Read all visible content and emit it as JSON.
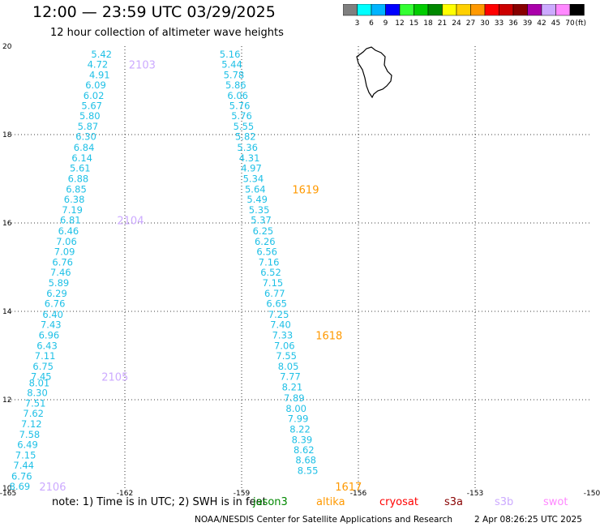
{
  "title": "12:00 — 23:59 UTC 03/29/2025",
  "subtitle": "12 hour collection of altimeter wave heights",
  "color_scale": {
    "labels": [
      "3",
      "6",
      "9",
      "12",
      "15",
      "18",
      "21",
      "24",
      "27",
      "30",
      "33",
      "36",
      "39",
      "42",
      "45",
      "70"
    ],
    "unit": "(ft)",
    "colors": [
      "#7f7f7f",
      "#00ffff",
      "#00b4ff",
      "#0000ff",
      "#33ff33",
      "#00cc00",
      "#008800",
      "#ffff00",
      "#ffd000",
      "#ff9900",
      "#ff0000",
      "#cc0000",
      "#880000",
      "#aa00aa",
      "#ccaaff",
      "#ff88ff",
      "#000000"
    ]
  },
  "note": "note:  1) Time is in UTC; 2) SWH is in feet",
  "satellites": [
    {
      "name": "jason3",
      "color": "#008800"
    },
    {
      "name": "altika",
      "color": "#ff9900"
    },
    {
      "name": "cryosat",
      "color": "#ff0000"
    },
    {
      "name": "s3a",
      "color": "#880000"
    },
    {
      "name": "s3b",
      "color": "#ccaaff"
    },
    {
      "name": "swot",
      "color": "#ff88ff"
    }
  ],
  "credit": "NOAA/NESDIS Center for Satellite Applications and Research",
  "timestamp": "2 Apr 08:26:25 UTC 2025",
  "chart_data": {
    "type": "scatter",
    "xlim": [
      -165,
      -150
    ],
    "ylim": [
      10,
      20
    ],
    "x_ticks": [
      "-165",
      "-162",
      "-159",
      "-156",
      "-153",
      "-150"
    ],
    "y_ticks": [
      "10",
      "12",
      "14",
      "16",
      "18",
      "20"
    ],
    "grid": true,
    "value_color": "#1fc0e6",
    "tracks": [
      {
        "points": [
          [
            -162.6,
            19.82,
            "5.42"
          ],
          [
            -162.7,
            19.59,
            "4.72"
          ],
          [
            -162.65,
            19.35,
            "4.91"
          ],
          [
            -162.75,
            19.12,
            "6.09"
          ],
          [
            -162.8,
            18.88,
            "6.02"
          ],
          [
            -162.85,
            18.65,
            "5.67"
          ],
          [
            -162.9,
            18.42,
            "5.80"
          ],
          [
            -162.95,
            18.18,
            "5.87"
          ],
          [
            -163.0,
            17.95,
            "6.30"
          ],
          [
            -163.05,
            17.71,
            "6.84"
          ],
          [
            -163.1,
            17.47,
            "6.14"
          ],
          [
            -163.15,
            17.24,
            "5.61"
          ],
          [
            -163.2,
            17.0,
            "6.88"
          ],
          [
            -163.25,
            16.76,
            "6.85"
          ],
          [
            -163.3,
            16.53,
            "6.38"
          ],
          [
            -163.35,
            16.29,
            "7.19"
          ],
          [
            -163.4,
            16.06,
            "6.81"
          ],
          [
            -163.45,
            15.82,
            "6.46"
          ],
          [
            -163.5,
            15.58,
            "7.06"
          ],
          [
            -163.55,
            15.35,
            "7.09"
          ],
          [
            -163.6,
            15.11,
            "6.76"
          ],
          [
            -163.65,
            14.88,
            "7.46"
          ],
          [
            -163.7,
            14.64,
            "5.89"
          ],
          [
            -163.75,
            14.4,
            "6.29"
          ],
          [
            -163.8,
            14.17,
            "6.76"
          ],
          [
            -163.85,
            13.93,
            "6.40"
          ],
          [
            -163.9,
            13.7,
            "7.43"
          ],
          [
            -163.95,
            13.46,
            "6.96"
          ],
          [
            -164.0,
            13.22,
            "6.43"
          ],
          [
            -164.05,
            12.99,
            "7.11"
          ],
          [
            -164.1,
            12.75,
            "6.75"
          ],
          [
            -164.15,
            12.52,
            "7.45"
          ],
          [
            -164.2,
            12.38,
            "8.01"
          ],
          [
            -164.25,
            12.16,
            "8.30"
          ],
          [
            -164.3,
            11.92,
            "7.51"
          ],
          [
            -164.35,
            11.69,
            "7.62"
          ],
          [
            -164.4,
            11.45,
            "7.12"
          ],
          [
            -164.45,
            11.21,
            "7.58"
          ],
          [
            -164.5,
            10.98,
            "6.49"
          ],
          [
            -164.55,
            10.74,
            "7.15"
          ],
          [
            -164.6,
            10.51,
            "7.44"
          ],
          [
            -164.65,
            10.27,
            "6.76"
          ],
          [
            -164.7,
            10.04,
            "8.69"
          ]
        ]
      },
      {
        "points": [
          [
            -159.3,
            19.82,
            "5.16"
          ],
          [
            -159.25,
            19.59,
            "5.44"
          ],
          [
            -159.2,
            19.35,
            "5.78"
          ],
          [
            -159.15,
            19.12,
            "5.86"
          ],
          [
            -159.1,
            18.88,
            "6.06"
          ],
          [
            -159.05,
            18.65,
            "5.76"
          ],
          [
            -159.0,
            18.42,
            "5.76"
          ],
          [
            -158.95,
            18.18,
            "5.55"
          ],
          [
            -158.9,
            17.95,
            "5.82"
          ],
          [
            -158.85,
            17.71,
            "5.36"
          ],
          [
            -158.8,
            17.47,
            "4.31"
          ],
          [
            -158.75,
            17.24,
            "4.97"
          ],
          [
            -158.7,
            17.0,
            "5.34"
          ],
          [
            -158.65,
            16.76,
            "5.64"
          ],
          [
            -158.6,
            16.53,
            "5.49"
          ],
          [
            -158.55,
            16.29,
            "5.35"
          ],
          [
            -158.5,
            16.06,
            "5.37"
          ],
          [
            -158.45,
            15.82,
            "6.25"
          ],
          [
            -158.4,
            15.58,
            "6.26"
          ],
          [
            -158.35,
            15.35,
            "6.56"
          ],
          [
            -158.3,
            15.11,
            "7.16"
          ],
          [
            -158.25,
            14.88,
            "6.52"
          ],
          [
            -158.2,
            14.64,
            "7.15"
          ],
          [
            -158.15,
            14.4,
            "6.77"
          ],
          [
            -158.1,
            14.17,
            "6.65"
          ],
          [
            -158.05,
            13.93,
            "7.25"
          ],
          [
            -158.0,
            13.7,
            "7.40"
          ],
          [
            -157.95,
            13.46,
            "7.33"
          ],
          [
            -157.9,
            13.22,
            "7.06"
          ],
          [
            -157.85,
            12.99,
            "7.55"
          ],
          [
            -157.8,
            12.75,
            "8.05"
          ],
          [
            -157.75,
            12.52,
            "7.77"
          ],
          [
            -157.7,
            12.28,
            "8.21"
          ],
          [
            -157.65,
            12.04,
            "7.89"
          ],
          [
            -157.6,
            11.8,
            "8.00"
          ],
          [
            -157.55,
            11.57,
            "7.99"
          ],
          [
            -157.5,
            11.33,
            "8.22"
          ],
          [
            -157.45,
            11.09,
            "8.39"
          ],
          [
            -157.4,
            10.86,
            "8.62"
          ],
          [
            -157.35,
            10.63,
            "8.68"
          ],
          [
            -157.3,
            10.39,
            "8.55"
          ]
        ]
      }
    ],
    "pass_labels": [
      {
        "text": "2103",
        "x": -161.9,
        "y": 19.59,
        "color": "#ccaaff"
      },
      {
        "text": "2104",
        "x": -162.2,
        "y": 16.06,
        "color": "#ccaaff"
      },
      {
        "text": "2105",
        "x": -162.6,
        "y": 12.52,
        "color": "#ccaaff"
      },
      {
        "text": "2106",
        "x": -164.2,
        "y": 10.04,
        "color": "#ccaaff"
      },
      {
        "text": "1619",
        "x": -157.7,
        "y": 16.76,
        "color": "#ff9900"
      },
      {
        "text": "1618",
        "x": -157.1,
        "y": 13.46,
        "color": "#ff9900"
      },
      {
        "text": "1617",
        "x": -156.6,
        "y": 10.04,
        "color": "#ff9900"
      }
    ]
  }
}
